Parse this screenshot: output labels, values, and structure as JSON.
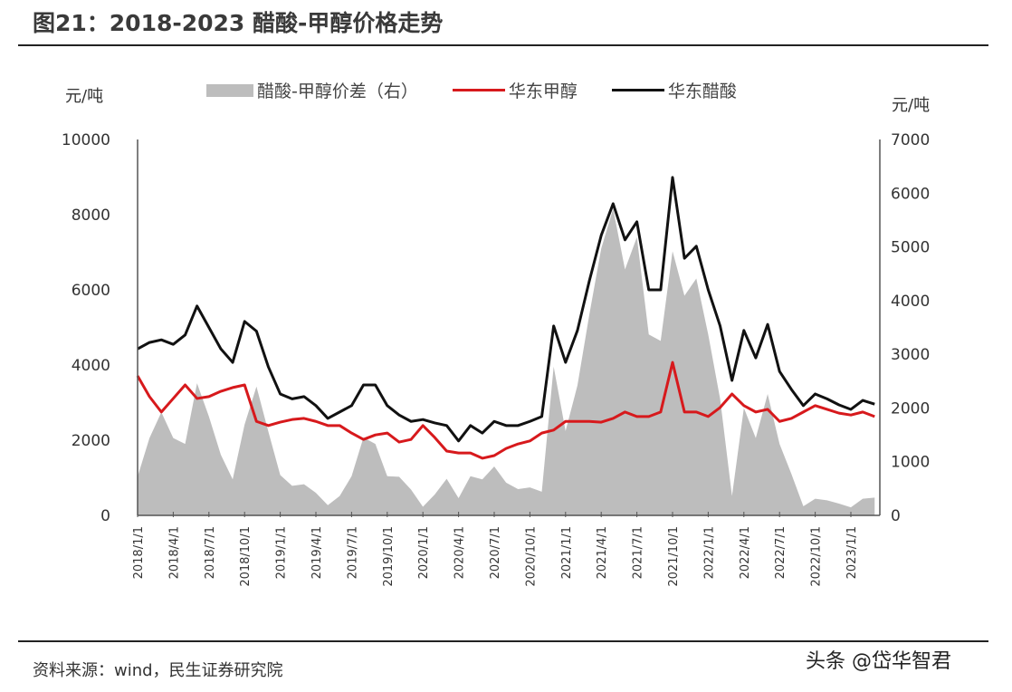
{
  "title": "图21：2018-2023 醋酸-甲醇价格走势",
  "footer": "资料来源：wind，民生证券研究院",
  "watermark": "头条 @岱华智君",
  "chart_data": {
    "type": "line+area",
    "title": "图21：2018-2023 醋酸-甲醇价格走势",
    "left_unit": "元/吨",
    "right_unit": "元/吨",
    "left_ylim": [
      0,
      10000
    ],
    "left_yticks": [
      "0",
      "2000",
      "4000",
      "6000",
      "8000",
      "10000"
    ],
    "right_ylim": [
      0,
      7000
    ],
    "right_yticks": [
      "0",
      "1000",
      "2000",
      "3000",
      "4000",
      "5000",
      "6000",
      "7000"
    ],
    "grid": false,
    "legend_position": "top",
    "xticks": [
      "2018/1/1",
      "2018/4/1",
      "2018/7/1",
      "2018/10/1",
      "2019/1/1",
      "2019/4/1",
      "2019/7/1",
      "2019/10/1",
      "2020/1/1",
      "2020/4/1",
      "2020/7/1",
      "2020/10/1",
      "2021/1/1",
      "2021/4/1",
      "2021/7/1",
      "2021/10/1",
      "2022/1/1",
      "2022/4/1",
      "2022/7/1",
      "2022/10/1",
      "2023/1/1"
    ],
    "x": [
      "2018-01",
      "2018-02",
      "2018-03",
      "2018-04",
      "2018-05",
      "2018-06",
      "2018-07",
      "2018-08",
      "2018-09",
      "2018-10",
      "2018-11",
      "2018-12",
      "2019-01",
      "2019-02",
      "2019-03",
      "2019-04",
      "2019-05",
      "2019-06",
      "2019-07",
      "2019-08",
      "2019-09",
      "2019-10",
      "2019-11",
      "2019-12",
      "2020-01",
      "2020-02",
      "2020-03",
      "2020-04",
      "2020-05",
      "2020-06",
      "2020-07",
      "2020-08",
      "2020-09",
      "2020-10",
      "2020-11",
      "2020-12",
      "2021-01",
      "2021-02",
      "2021-03",
      "2021-04",
      "2021-05",
      "2021-06",
      "2021-07",
      "2021-08",
      "2021-09",
      "2021-10",
      "2021-11",
      "2021-12",
      "2022-01",
      "2022-02",
      "2022-03",
      "2022-04",
      "2022-05",
      "2022-06",
      "2022-07",
      "2022-08",
      "2022-09",
      "2022-10",
      "2022-11",
      "2022-12",
      "2023-01",
      "2023-02",
      "2023-03"
    ],
    "series": [
      {
        "name": "醋酸-甲醇价差（右）",
        "axis": "right",
        "kind": "area",
        "color": "#bdbdbd",
        "values": [
          720,
          1440,
          1920,
          1440,
          1330,
          2460,
          1840,
          1130,
          670,
          1690,
          2400,
          1560,
          750,
          550,
          580,
          420,
          190,
          360,
          730,
          1450,
          1330,
          730,
          720,
          480,
          160,
          390,
          680,
          320,
          730,
          670,
          910,
          610,
          490,
          520,
          440,
          2770,
          1570,
          2420,
          3740,
          4970,
          5710,
          4580,
          5180,
          3370,
          3250,
          4920,
          4090,
          4410,
          3370,
          2170,
          360,
          2000,
          1440,
          2260,
          1330,
          770,
          170,
          310,
          280,
          220,
          150,
          310,
          330
        ]
      },
      {
        "name": "华东甲醇",
        "axis": "left",
        "kind": "line",
        "color": "#d7191c",
        "values": [
          3710,
          3160,
          2750,
          3110,
          3470,
          3110,
          3160,
          3300,
          3400,
          3470,
          2500,
          2390,
          2480,
          2550,
          2580,
          2500,
          2390,
          2390,
          2190,
          2020,
          2140,
          2190,
          1950,
          2020,
          2390,
          2070,
          1710,
          1660,
          1660,
          1520,
          1590,
          1780,
          1900,
          1980,
          2190,
          2270,
          2500,
          2500,
          2500,
          2480,
          2580,
          2750,
          2630,
          2630,
          2750,
          4070,
          2750,
          2750,
          2630,
          2870,
          3230,
          2920,
          2750,
          2820,
          2500,
          2580,
          2750,
          2920,
          2820,
          2720,
          2670,
          2750,
          2630
        ]
      },
      {
        "name": "华东醋酸",
        "axis": "left",
        "kind": "line",
        "color": "#111111",
        "values": [
          4430,
          4600,
          4670,
          4550,
          4800,
          5570,
          5000,
          4430,
          4070,
          5160,
          4900,
          3950,
          3230,
          3100,
          3160,
          2920,
          2580,
          2750,
          2920,
          3470,
          3470,
          2920,
          2670,
          2500,
          2550,
          2460,
          2390,
          1980,
          2390,
          2190,
          2500,
          2390,
          2390,
          2500,
          2630,
          5040,
          4070,
          4920,
          6240,
          7450,
          8290,
          7330,
          7810,
          6000,
          6000,
          8990,
          6840,
          7160,
          6000,
          5040,
          3590,
          4920,
          4190,
          5080,
          3830,
          3350,
          2920,
          3230,
          3100,
          2940,
          2820,
          3060,
          2960
        ]
      }
    ]
  }
}
